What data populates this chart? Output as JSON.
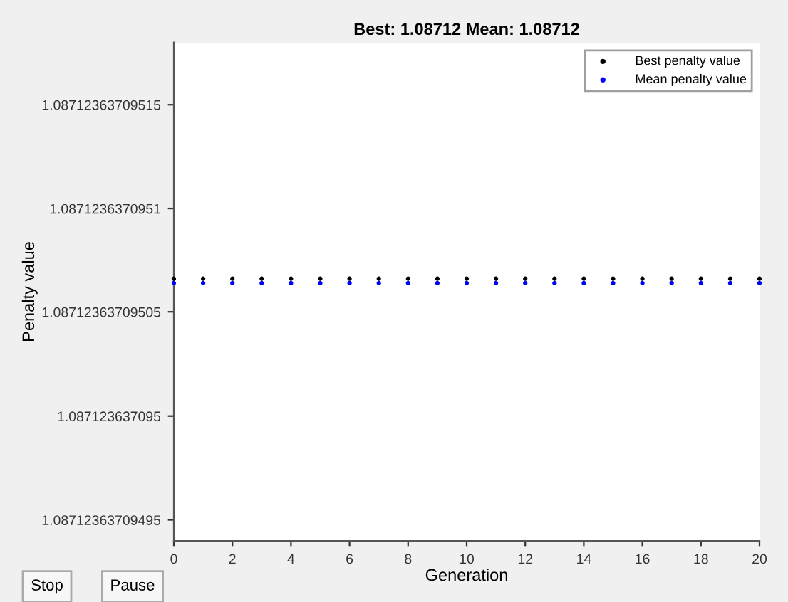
{
  "chart_data": {
    "type": "scatter",
    "title": "Best: 1.08712 Mean: 1.08712",
    "xlabel": "Generation",
    "ylabel": "Penalty value",
    "x": [
      0,
      1,
      2,
      3,
      4,
      5,
      6,
      7,
      8,
      9,
      10,
      11,
      12,
      13,
      14,
      15,
      16,
      17,
      18,
      19,
      20
    ],
    "series": [
      {
        "name": "Best penalty value",
        "color": "#000000",
        "values": [
          1.087123637095066,
          1.087123637095066,
          1.087123637095066,
          1.087123637095066,
          1.087123637095066,
          1.087123637095066,
          1.087123637095066,
          1.087123637095066,
          1.087123637095066,
          1.087123637095066,
          1.087123637095066,
          1.087123637095066,
          1.087123637095066,
          1.087123637095066,
          1.087123637095066,
          1.087123637095066,
          1.087123637095066,
          1.087123637095066,
          1.087123637095066,
          1.087123637095066,
          1.087123637095066
        ]
      },
      {
        "name": "Mean penalty value",
        "color": "#0000ff",
        "values": [
          1.087123637095064,
          1.087123637095064,
          1.087123637095064,
          1.087123637095064,
          1.087123637095064,
          1.087123637095064,
          1.087123637095064,
          1.087123637095064,
          1.087123637095064,
          1.087123637095064,
          1.087123637095064,
          1.087123637095064,
          1.087123637095064,
          1.087123637095064,
          1.087123637095064,
          1.087123637095064,
          1.087123637095064,
          1.087123637095064,
          1.087123637095064,
          1.087123637095064,
          1.087123637095064
        ]
      }
    ],
    "xlim": [
      0,
      20
    ],
    "xticks": [
      0,
      2,
      4,
      6,
      8,
      10,
      12,
      14,
      16,
      18,
      20
    ],
    "ylim": [
      1.08712363709494,
      1.08712363709518
    ],
    "yticks": [
      1.08712363709495,
      1.087123637095,
      1.08712363709505,
      1.0871236370951,
      1.08712363709515
    ],
    "marker": "circle",
    "grid": false,
    "legend": "top right",
    "annotations": [
      "Stop",
      "Pause"
    ]
  }
}
